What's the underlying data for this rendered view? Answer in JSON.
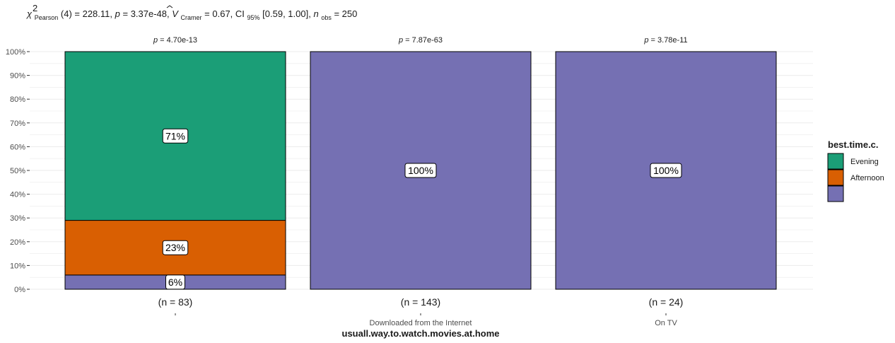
{
  "chart_data": {
    "type": "bar",
    "stacked": true,
    "title": {
      "text": "χ²Pearson(4) = 228.11, p = 3.37e-48, V̂Cramer = 0.67, CI95% [0.59, 1.00], nobs = 250",
      "chi_sym": "χ",
      "sup": "2",
      "pearson": "Pearson",
      "df_stat": "(4) = 228.11, ",
      "p_sym": "p",
      "p_val": " = 3.37e-48, ",
      "v_sym": "V",
      "cramer": "Cramer",
      "v_val": " = 0.67, CI",
      "ci_sub": "95%",
      "ci_val": " [0.59, 1.00], ",
      "n_sym": "n",
      "n_sub": "obs",
      "n_val": " = 250"
    },
    "xlabel": "usuall.way.to.watch.movies.at.home",
    "ylabel": "",
    "ylim": [
      0,
      100
    ],
    "y_ticks": [
      "0%",
      "10%",
      "20%",
      "30%",
      "40%",
      "50%",
      "60%",
      "70%",
      "80%",
      "90%",
      "100%"
    ],
    "categories": [
      "",
      "Downloaded from the Internet",
      "On TV"
    ],
    "n_labels": [
      "(n = 83)",
      "(n = 143)",
      "(n = 24)"
    ],
    "p_labels": [
      "4.70e-13",
      "7.87e-63",
      "3.78e-11"
    ],
    "p_prefix": "p = ",
    "series": [
      {
        "name": "",
        "color": "#7570b3",
        "values": [
          6,
          100,
          100
        ],
        "labels": [
          "6%",
          "100%",
          "100%"
        ]
      },
      {
        "name": "Afternoon",
        "color": "#d95f02",
        "values": [
          23,
          0,
          0
        ],
        "labels": [
          "23%",
          "",
          ""
        ]
      },
      {
        "name": "Evening",
        "color": "#1b9e77",
        "values": [
          71,
          0,
          0
        ],
        "labels": [
          "71%",
          "",
          ""
        ]
      }
    ],
    "legend": {
      "title": "best.time.c.",
      "position": "right",
      "entries": [
        {
          "label": "Evening",
          "color": "#1b9e77"
        },
        {
          "label": "Afternoon",
          "color": "#d95f02"
        },
        {
          "label": "",
          "color": "#7570b3"
        }
      ]
    },
    "grid": true
  }
}
